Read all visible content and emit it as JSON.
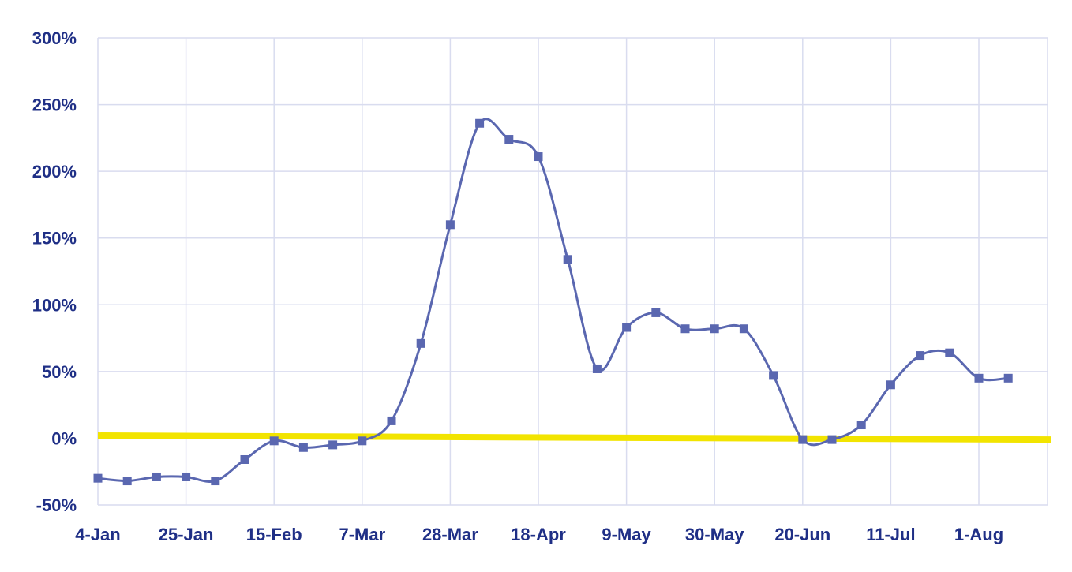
{
  "colors": {
    "axis_text": "#1f2f86",
    "grid": "#d9dcef",
    "series": "#5a67b0",
    "baseline": "#f2e400",
    "background": "#ffffff"
  },
  "chart_data": {
    "type": "line",
    "title": "",
    "xlabel": "",
    "ylabel": "",
    "grid": true,
    "smooth": true,
    "marker": "square",
    "ylim": [
      -50,
      300
    ],
    "y_ticks": [
      300,
      250,
      200,
      150,
      100,
      50,
      0,
      -50
    ],
    "y_tick_labels": [
      "300%",
      "250%",
      "200%",
      "150%",
      "100%",
      "50%",
      "0%",
      "-50%"
    ],
    "x_tick_labels": [
      "4-Jan",
      "25-Jan",
      "15-Feb",
      "7-Mar",
      "28-Mar",
      "18-Apr",
      "9-May",
      "30-May",
      "20-Jun",
      "11-Jul",
      "1-Aug"
    ],
    "baseline": {
      "start": 2,
      "end": -1
    },
    "series": [
      {
        "x": [
          "4-Jan",
          "11-Jan",
          "18-Jan",
          "25-Jan",
          "1-Feb",
          "8-Feb",
          "15-Feb",
          "22-Feb",
          "1-Mar",
          "7-Mar",
          "14-Mar",
          "21-Mar",
          "28-Mar",
          "4-Apr",
          "11-Apr",
          "18-Apr",
          "25-Apr",
          "2-May",
          "9-May",
          "16-May",
          "23-May",
          "30-May",
          "6-Jun",
          "13-Jun",
          "20-Jun",
          "27-Jun",
          "4-Jul",
          "11-Jul",
          "18-Jul",
          "25-Jul",
          "1-Aug",
          "8-Aug"
        ],
        "values": [
          -30,
          -32,
          -29,
          -29,
          -32,
          -16,
          -2,
          -7,
          -5,
          -2,
          13,
          71,
          160,
          236,
          224,
          211,
          134,
          52,
          83,
          94,
          82,
          82,
          82,
          47,
          -1,
          -1,
          10,
          40,
          62,
          64,
          45,
          45
        ]
      }
    ]
  }
}
